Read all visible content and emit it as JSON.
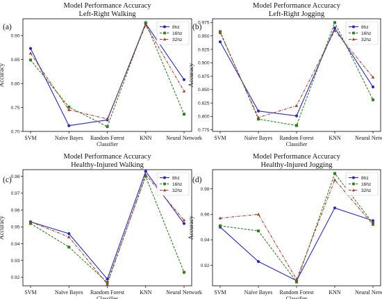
{
  "chart_data": [
    {
      "type": "line",
      "panel": "(a)",
      "title": "Model Performance Accuracy",
      "subtitle": "Left-Right Walking",
      "ylabel": "Accuracy",
      "categories": [
        "SVM",
        "Naïve Bayes",
        "Random Forest Classifier",
        "KNN",
        "Neural Network"
      ],
      "ylim": [
        0.7,
        0.935
      ],
      "yticks": [
        "0.70",
        "0.75",
        "0.80",
        "0.85",
        "0.90"
      ],
      "legend": "top-right",
      "series": [
        {
          "name": "8hz",
          "color": "#2727c8",
          "marker": "circle",
          "dash": "solid",
          "values": [
            0.873,
            0.712,
            0.724,
            0.925,
            0.808
          ]
        },
        {
          "name": "16hz",
          "color": "#2f7d1f",
          "marker": "square",
          "dash": "dashed",
          "values": [
            0.849,
            0.751,
            0.71,
            0.927,
            0.736
          ]
        },
        {
          "name": "32hz",
          "color": "#a63a2a",
          "marker": "triangle",
          "dash": "dashdot",
          "values": [
            0.863,
            0.745,
            0.726,
            0.922,
            0.784
          ]
        }
      ]
    },
    {
      "type": "line",
      "panel": "(b)",
      "title": "Model Performance Accuracy",
      "subtitle": "Left-Right Jogging",
      "ylabel": "Accuracy",
      "categories": [
        "SVM",
        "Naïve Bayes",
        "Random Forest Classifier",
        "KNN",
        "Neural Network"
      ],
      "ylim": [
        0.772,
        0.982
      ],
      "yticks": [
        "0.775",
        "0.800",
        "0.825",
        "0.850",
        "0.875",
        "0.900",
        "0.925",
        "0.950",
        "0.975"
      ],
      "legend": "top-right",
      "series": [
        {
          "name": "8hz",
          "color": "#2727c8",
          "marker": "circle",
          "dash": "solid",
          "values": [
            0.939,
            0.81,
            0.801,
            0.965,
            0.855
          ]
        },
        {
          "name": "16hz",
          "color": "#2f7d1f",
          "marker": "square",
          "dash": "dashed",
          "values": [
            0.958,
            0.795,
            0.783,
            0.975,
            0.831
          ]
        },
        {
          "name": "32hz",
          "color": "#a63a2a",
          "marker": "triangle",
          "dash": "dashdot",
          "values": [
            0.956,
            0.798,
            0.82,
            0.96,
            0.873
          ]
        }
      ]
    },
    {
      "type": "line",
      "panel": "(c)",
      "title": "Model Performance Accuracy",
      "subtitle": "Healthy-Injured Walking",
      "ylabel": "Accuracy",
      "categories": [
        "SVM",
        "Naïve Bayes",
        "Random Forest Classifier",
        "KNN",
        "Neural Network"
      ],
      "ylim": [
        0.915,
        0.984
      ],
      "yticks": [
        "0.92",
        "0.93",
        "0.94",
        "0.95",
        "0.96",
        "0.97",
        "0.98"
      ],
      "legend": "top-right",
      "series": [
        {
          "name": "8hz",
          "color": "#2727c8",
          "marker": "circle",
          "dash": "solid",
          "values": [
            0.953,
            0.946,
            0.919,
            0.983,
            0.952
          ]
        },
        {
          "name": "16hz",
          "color": "#2f7d1f",
          "marker": "square",
          "dash": "dashed",
          "values": [
            0.952,
            0.938,
            0.917,
            0.98,
            0.923
          ]
        },
        {
          "name": "32hz",
          "color": "#a63a2a",
          "marker": "triangle",
          "dash": "dashdot",
          "values": [
            0.953,
            0.944,
            0.916,
            0.981,
            0.954
          ]
        }
      ]
    },
    {
      "type": "line",
      "panel": "(d)",
      "title": "Model Performance Accuracy",
      "subtitle": "Healthy-Injured Jogging",
      "ylabel": "Accuracy",
      "categories": [
        "SVM",
        "Naïve Bayes",
        "Random Forest Classifier",
        "KNN",
        "Neural Network"
      ],
      "ylim": [
        0.904,
        0.995
      ],
      "yticks": [
        "0.92",
        "0.94",
        "0.96",
        "0.98"
      ],
      "legend": "top-right",
      "series": [
        {
          "name": "8hz",
          "color": "#2727c8",
          "marker": "circle",
          "dash": "solid",
          "values": [
            0.95,
            0.923,
            0.908,
            0.965,
            0.955
          ]
        },
        {
          "name": "16hz",
          "color": "#2f7d1f",
          "marker": "square",
          "dash": "dashed",
          "values": [
            0.951,
            0.947,
            0.907,
            0.992,
            0.953
          ]
        },
        {
          "name": "32hz",
          "color": "#a63a2a",
          "marker": "triangle",
          "dash": "dashdot",
          "values": [
            0.957,
            0.96,
            0.909,
            0.987,
            0.952
          ]
        }
      ]
    }
  ]
}
